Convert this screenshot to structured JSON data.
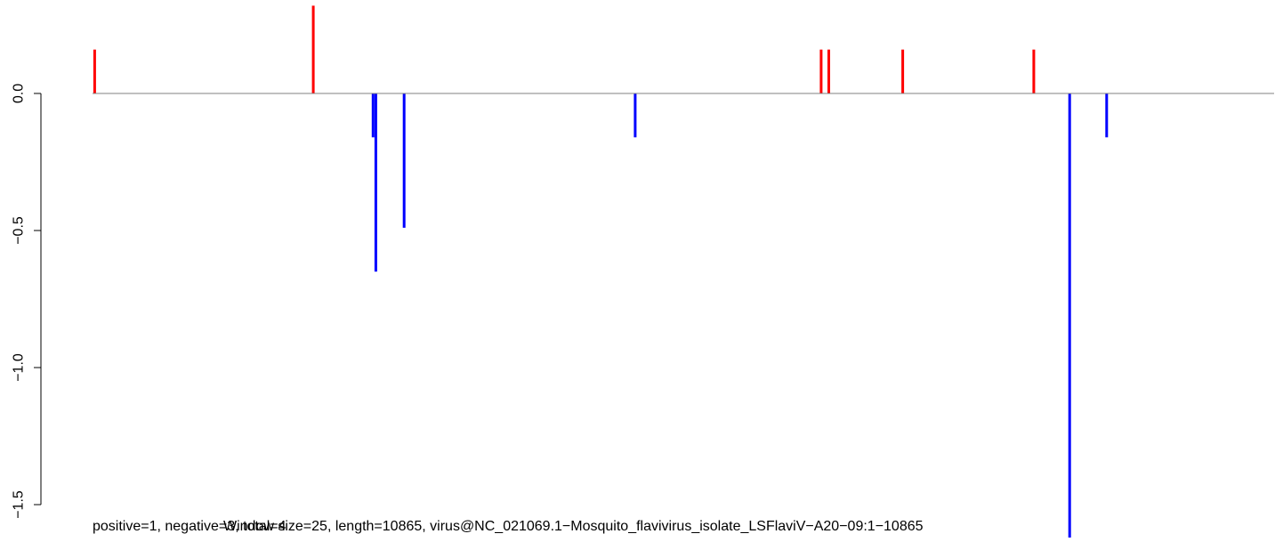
{
  "chart_data": {
    "type": "bar",
    "ylim": [
      -1.5,
      0.3
    ],
    "yticks": [
      -1.5,
      -1.0,
      -0.5,
      0.0
    ],
    "ytick_labels": [
      "−1.5",
      "−1.0",
      "−0.5",
      "0.0"
    ],
    "xlim": [
      0,
      10865
    ],
    "grid": false,
    "legend": "none",
    "colors": {
      "positive": "#ff0000",
      "negative": "#0000ff",
      "baseline": "#808080"
    },
    "bars": [
      {
        "x": 20,
        "y": 0.16
      },
      {
        "x": 2030,
        "y": 0.32
      },
      {
        "x": 2580,
        "y": -0.16
      },
      {
        "x": 2605,
        "y": -0.65
      },
      {
        "x": 2865,
        "y": -0.49
      },
      {
        "x": 4990,
        "y": -0.16
      },
      {
        "x": 6700,
        "y": 0.16
      },
      {
        "x": 6770,
        "y": 0.16
      },
      {
        "x": 7450,
        "y": 0.16
      },
      {
        "x": 8655,
        "y": 0.16
      },
      {
        "x": 8985,
        "y": -1.62
      },
      {
        "x": 9325,
        "y": -0.16
      }
    ],
    "captions": {
      "left": "positive=1, negative=3, total=4",
      "right": "Window size=25, length=10865, virus@NC_021069.1−Mosquito_flavivirus_isolate_LSFlaviV−A20−09:1−10865"
    }
  }
}
